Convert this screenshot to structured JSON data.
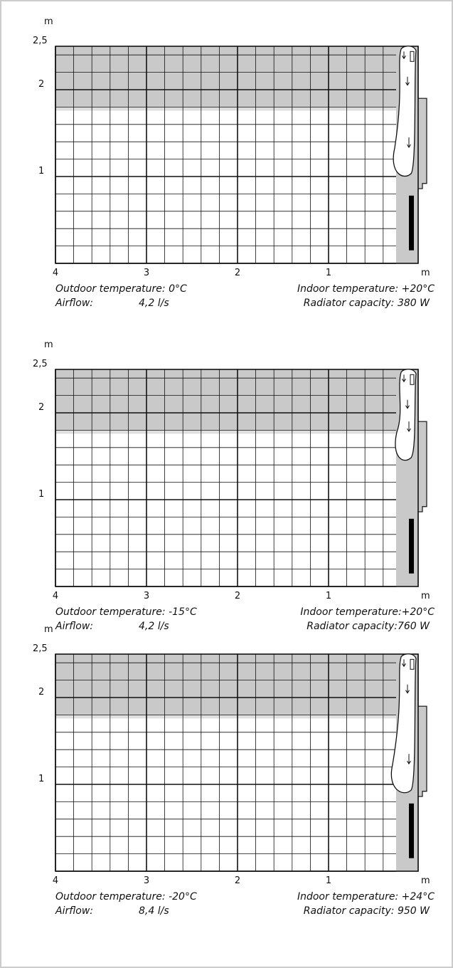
{
  "panels": [
    {
      "y_unit": "m",
      "y_labels": [
        "2,5",
        "2",
        "1"
      ],
      "x_labels": [
        "4",
        "3",
        "2",
        "1"
      ],
      "x_unit": "m",
      "outdoor": "Outdoor temperature: 0°C",
      "indoor": "Indoor temperature: +20°C",
      "airflow_label": "Airflow:",
      "airflow": "4,2 l/s",
      "radiator": "Radiator capacity: 380 W"
    },
    {
      "y_unit": "m",
      "y_labels": [
        "2,5",
        "2",
        "1"
      ],
      "x_labels": [
        "4",
        "3",
        "2",
        "1"
      ],
      "x_unit": "m",
      "outdoor": "Outdoor temperature: -15°C",
      "indoor": "Indoor temperature:+20°C",
      "airflow_label": "Airflow:",
      "airflow": "4,2 l/s",
      "radiator": "Radiator capacity:760 W"
    },
    {
      "y_unit": "m",
      "y_labels": [
        "2,5",
        "2",
        "1"
      ],
      "x_labels": [
        "4",
        "3",
        "2",
        "1"
      ],
      "x_unit": "m",
      "outdoor": "Outdoor temperature: -20°C",
      "indoor": "Indoor temperature: +24°C",
      "airflow_label": "Airflow:",
      "airflow": "8,4 l/s",
      "radiator": "Radiator capacity: 950 W"
    }
  ]
}
